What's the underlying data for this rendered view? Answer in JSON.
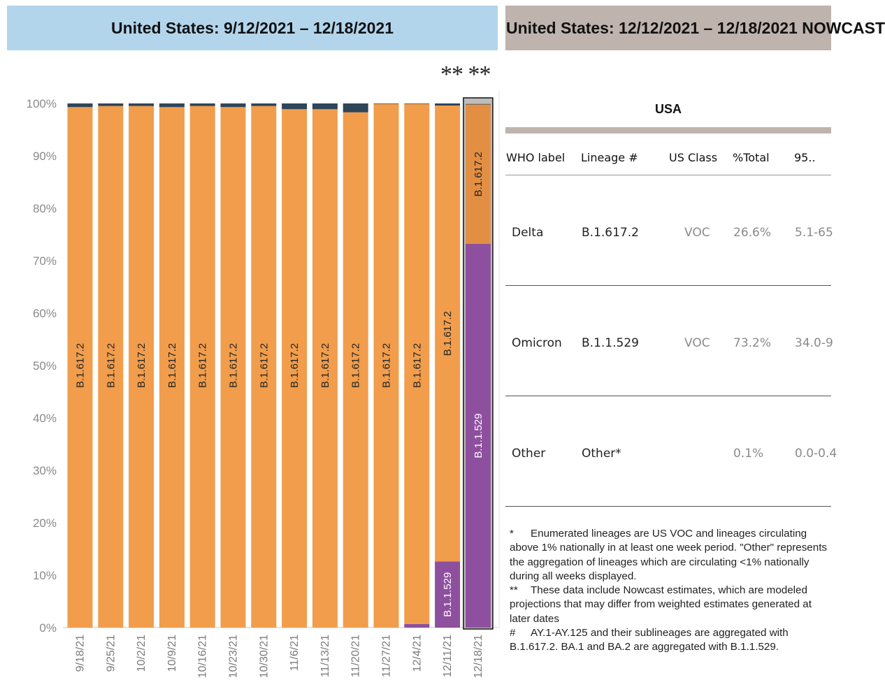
{
  "header_left": "United States: 9/12/2021 – 12/18/2021",
  "header_right": "United States: 12/12/2021 – 12/18/2021 NOWCAST",
  "nowcast_marker": "** **",
  "chart_data": {
    "type": "bar",
    "stacked": true,
    "categories": [
      "9/18/21",
      "9/25/21",
      "10/2/21",
      "10/9/21",
      "10/16/21",
      "10/23/21",
      "10/30/21",
      "11/6/21",
      "11/13/21",
      "11/20/21",
      "11/27/21",
      "12/4/21",
      "12/11/21",
      "12/18/21"
    ],
    "series": [
      {
        "name": "B.1.1.529",
        "color": "#8e4f9e",
        "values": [
          0,
          0,
          0,
          0,
          0,
          0,
          0,
          0,
          0,
          0,
          0,
          0.7,
          12.6,
          73.2
        ]
      },
      {
        "name": "B.1.617.2",
        "color": "#f19d4c",
        "values": [
          99.3,
          99.5,
          99.5,
          99.3,
          99.5,
          99.3,
          99.5,
          98.9,
          98.9,
          98.3,
          99.9,
          99.2,
          87.0,
          26.6
        ]
      },
      {
        "name": "Other",
        "color": "#2f4659",
        "values": [
          0.7,
          0.5,
          0.5,
          0.7,
          0.5,
          0.7,
          0.5,
          1.1,
          1.1,
          1.7,
          0.1,
          0.1,
          0.4,
          0.1
        ]
      }
    ],
    "y_ticks": [
      "0%",
      "10%",
      "20%",
      "30%",
      "40%",
      "50%",
      "60%",
      "70%",
      "80%",
      "90%",
      "100%"
    ],
    "ylim": [
      0,
      100
    ],
    "highlight_category": "12/18/21",
    "highlight_color": "#e28f44"
  },
  "table": {
    "title": "USA",
    "columns": [
      "WHO label",
      "Lineage #",
      "US Class",
      "%Total",
      "95.."
    ],
    "rows": [
      {
        "who": "Delta",
        "lineage": "B.1.617.2",
        "us_class": "VOC",
        "pct": "26.6%",
        "ci": "5.1-65"
      },
      {
        "who": "Omicron",
        "lineage": "B.1.1.529",
        "us_class": "VOC",
        "pct": "73.2%",
        "ci": "34.0-9"
      },
      {
        "who": "Other",
        "lineage": "Other*",
        "us_class": "",
        "pct": "0.1%",
        "ci": "0.0-0.4"
      }
    ]
  },
  "footnotes": [
    {
      "mark": "*",
      "text": "Enumerated lineages are US VOC and lineages circulating above 1% nationally in at least one week period. \"Other\" represents the aggregation of lineages which are circulating <1% nationally during all weeks displayed."
    },
    {
      "mark": "**",
      "text": "These data include Nowcast estimates, which are modeled projections that may differ from weighted estimates generated at later dates"
    },
    {
      "mark": "#",
      "text": "AY.1-AY.125 and their sublineages are aggregated with B.1.617.2. BA.1 and BA.2 are aggregated with B.1.1.529."
    }
  ]
}
